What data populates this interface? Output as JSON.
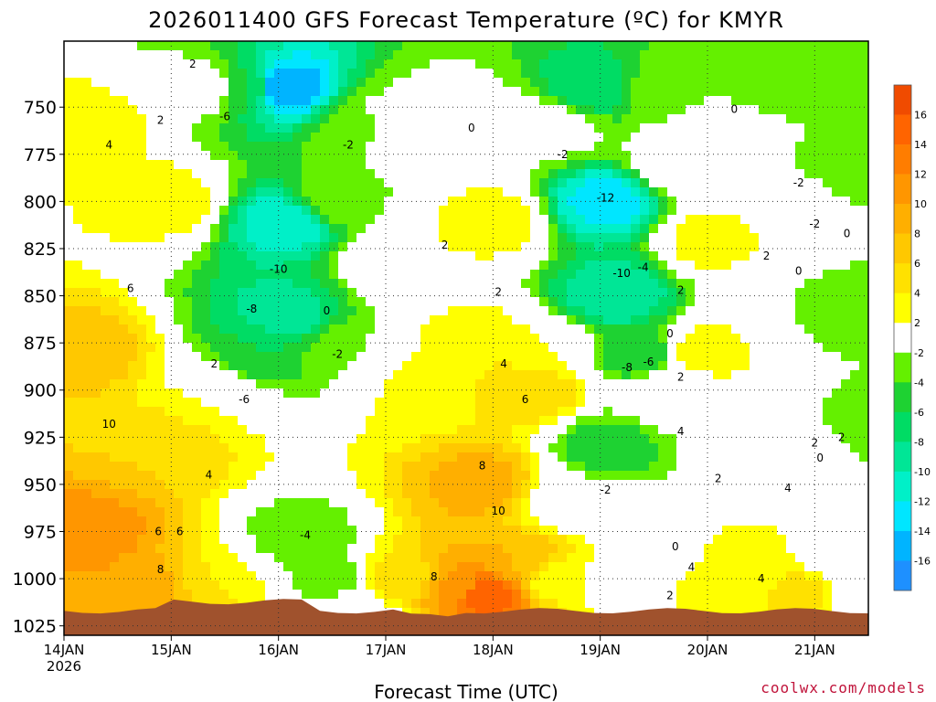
{
  "chart_data": {
    "type": "heatmap",
    "title": "2026011400 GFS Forecast Temperature (ºC) for KMYR",
    "xlabel": "Forecast Time (UTC)",
    "ylabel": "",
    "credit": "coolwx.com/models",
    "y_axis": {
      "range": [
        1030,
        715
      ],
      "ticks": [
        "750",
        "775",
        "800",
        "825",
        "850",
        "875",
        "900",
        "925",
        "950",
        "975",
        "1000",
        "1025"
      ]
    },
    "x_axis": {
      "range_days": [
        0,
        7.5
      ],
      "ticks": [
        {
          "label": "14JAN",
          "sub": "2026",
          "day": 0
        },
        {
          "label": "15JAN",
          "sub": "",
          "day": 1
        },
        {
          "label": "16JAN",
          "sub": "",
          "day": 2
        },
        {
          "label": "17JAN",
          "sub": "",
          "day": 3
        },
        {
          "label": "18JAN",
          "sub": "",
          "day": 4
        },
        {
          "label": "19JAN",
          "sub": "",
          "day": 5
        },
        {
          "label": "20JAN",
          "sub": "",
          "day": 6
        },
        {
          "label": "21JAN",
          "sub": "",
          "day": 7
        }
      ]
    },
    "colorbar": {
      "bins": [
        {
          "lo": -18,
          "hi": -16,
          "color": "#1e90ff"
        },
        {
          "lo": -16,
          "hi": -14,
          "color": "#00b4ff"
        },
        {
          "lo": -14,
          "hi": -12,
          "color": "#00e6ff"
        },
        {
          "lo": -12,
          "hi": -10,
          "color": "#00f0c8"
        },
        {
          "lo": -10,
          "hi": -8,
          "color": "#00e696"
        },
        {
          "lo": -8,
          "hi": -6,
          "color": "#00dc64"
        },
        {
          "lo": -6,
          "hi": -4,
          "color": "#1ed232"
        },
        {
          "lo": -4,
          "hi": -2,
          "color": "#64f000"
        },
        {
          "lo": -2,
          "hi": 2,
          "color": "#ffffff"
        },
        {
          "lo": 2,
          "hi": 4,
          "color": "#ffff00"
        },
        {
          "lo": 4,
          "hi": 6,
          "color": "#ffe100"
        },
        {
          "lo": 6,
          "hi": 8,
          "color": "#ffc800"
        },
        {
          "lo": 8,
          "hi": 10,
          "color": "#ffaf00"
        },
        {
          "lo": 10,
          "hi": 12,
          "color": "#ff9600"
        },
        {
          "lo": 12,
          "hi": 14,
          "color": "#ff7d00"
        },
        {
          "lo": 14,
          "hi": 16,
          "color": "#ff6400"
        },
        {
          "lo": 16,
          "hi": 18,
          "color": "#f04b00"
        }
      ],
      "labels": [
        "16",
        "14",
        "12",
        "10",
        "8",
        "6",
        "4",
        "2",
        "-2",
        "-4",
        "-6",
        "-8",
        "-10",
        "-12",
        "-14",
        "-16"
      ]
    },
    "field_points": [
      {
        "day": 0.25,
        "p": 975,
        "t": 11
      },
      {
        "day": 0.2,
        "p": 880,
        "t": 7
      },
      {
        "day": 0.25,
        "p": 760,
        "t": 3
      },
      {
        "day": 0.7,
        "p": 1005,
        "t": 10
      },
      {
        "day": 0.85,
        "p": 930,
        "t": 6
      },
      {
        "day": 0.95,
        "p": 800,
        "t": 3
      },
      {
        "day": 1.3,
        "p": 1005,
        "t": 6
      },
      {
        "day": 1.35,
        "p": 900,
        "t": 2
      },
      {
        "day": 1.35,
        "p": 740,
        "t": 0
      },
      {
        "day": 1.6,
        "p": 1000,
        "t": 2
      },
      {
        "day": 1.8,
        "p": 880,
        "t": -6
      },
      {
        "day": 1.7,
        "p": 740,
        "t": -6
      },
      {
        "day": 2.05,
        "p": 740,
        "t": -16
      },
      {
        "day": 2.1,
        "p": 810,
        "t": -12
      },
      {
        "day": 2.05,
        "p": 860,
        "t": -9
      },
      {
        "day": 2.2,
        "p": 980,
        "t": -4
      },
      {
        "day": 2.45,
        "p": 1000,
        "t": -3
      },
      {
        "day": 2.5,
        "p": 800,
        "t": -2
      },
      {
        "day": 2.65,
        "p": 880,
        "t": -2
      },
      {
        "day": 2.75,
        "p": 1020,
        "t": 0
      },
      {
        "day": 2.8,
        "p": 760,
        "t": -3
      },
      {
        "day": 3.0,
        "p": 760,
        "t": 0
      },
      {
        "day": 3.1,
        "p": 830,
        "t": 2
      },
      {
        "day": 3.15,
        "p": 1000,
        "t": 5
      },
      {
        "day": 3.4,
        "p": 900,
        "t": 3
      },
      {
        "day": 3.55,
        "p": 760,
        "t": 0
      },
      {
        "day": 3.7,
        "p": 1005,
        "t": 10
      },
      {
        "day": 3.9,
        "p": 1008,
        "t": 16
      },
      {
        "day": 3.9,
        "p": 950,
        "t": 9
      },
      {
        "day": 3.85,
        "p": 880,
        "t": 4
      },
      {
        "day": 4.0,
        "p": 810,
        "t": 3
      },
      {
        "day": 4.2,
        "p": 760,
        "t": 0
      },
      {
        "day": 4.25,
        "p": 990,
        "t": 8
      },
      {
        "day": 4.35,
        "p": 900,
        "t": 6
      },
      {
        "day": 4.6,
        "p": 1000,
        "t": 3
      },
      {
        "day": 4.55,
        "p": 880,
        "t": 2
      },
      {
        "day": 4.7,
        "p": 960,
        "t": 0
      },
      {
        "day": 4.6,
        "p": 760,
        "t": -1
      },
      {
        "day": 4.9,
        "p": 740,
        "t": -8
      },
      {
        "day": 5.05,
        "p": 800,
        "t": -13
      },
      {
        "day": 5.15,
        "p": 850,
        "t": -10
      },
      {
        "day": 5.05,
        "p": 930,
        "t": -5
      },
      {
        "day": 5.3,
        "p": 1000,
        "t": -2
      },
      {
        "day": 5.35,
        "p": 880,
        "t": -6
      },
      {
        "day": 5.6,
        "p": 740,
        "t": -3
      },
      {
        "day": 5.55,
        "p": 1000,
        "t": 0
      },
      {
        "day": 5.7,
        "p": 900,
        "t": 1
      },
      {
        "day": 5.75,
        "p": 780,
        "t": 1
      },
      {
        "day": 5.9,
        "p": 1005,
        "t": 3
      },
      {
        "day": 5.95,
        "p": 880,
        "t": 3
      },
      {
        "day": 6.05,
        "p": 820,
        "t": 3
      },
      {
        "day": 6.15,
        "p": 760,
        "t": 0
      },
      {
        "day": 6.3,
        "p": 1000,
        "t": 3
      },
      {
        "day": 6.3,
        "p": 880,
        "t": 2
      },
      {
        "day": 6.5,
        "p": 740,
        "t": -3
      },
      {
        "day": 6.6,
        "p": 800,
        "t": 1
      },
      {
        "day": 6.7,
        "p": 1005,
        "t": 4
      },
      {
        "day": 6.9,
        "p": 1008,
        "t": 5
      },
      {
        "day": 6.9,
        "p": 930,
        "t": 2
      },
      {
        "day": 6.85,
        "p": 850,
        "t": -2
      },
      {
        "day": 7.1,
        "p": 740,
        "t": -2
      },
      {
        "day": 7.3,
        "p": 780,
        "t": -3
      },
      {
        "day": 7.3,
        "p": 860,
        "t": -3
      },
      {
        "day": 7.25,
        "p": 990,
        "t": 0
      },
      {
        "day": 7.45,
        "p": 1010,
        "t": -2
      },
      {
        "day": 7.45,
        "p": 920,
        "t": -4
      }
    ],
    "contour_labels": [
      {
        "text": "2",
        "day": 1.2,
        "p": 727
      },
      {
        "text": "-6",
        "day": 1.5,
        "p": 755
      },
      {
        "text": "2",
        "day": 0.9,
        "p": 757
      },
      {
        "text": "4",
        "day": 0.42,
        "p": 770
      },
      {
        "text": "-2",
        "day": 2.65,
        "p": 770
      },
      {
        "text": "0",
        "day": 3.8,
        "p": 761
      },
      {
        "text": "-2",
        "day": 4.65,
        "p": 775
      },
      {
        "text": "-12",
        "day": 5.05,
        "p": 798
      },
      {
        "text": "-10",
        "day": 5.2,
        "p": 838
      },
      {
        "text": "-4",
        "day": 5.4,
        "p": 835
      },
      {
        "text": "-8",
        "day": 5.25,
        "p": 888
      },
      {
        "text": "-6",
        "day": 5.45,
        "p": 885
      },
      {
        "text": "2",
        "day": 3.55,
        "p": 823
      },
      {
        "text": "2",
        "day": 4.05,
        "p": 848
      },
      {
        "text": "4",
        "day": 4.1,
        "p": 886
      },
      {
        "text": "6",
        "day": 4.3,
        "p": 905
      },
      {
        "text": "8",
        "day": 3.9,
        "p": 940
      },
      {
        "text": "10",
        "day": 4.05,
        "p": 964
      },
      {
        "text": "8",
        "day": 3.45,
        "p": 999
      },
      {
        "text": "6",
        "day": 0.62,
        "p": 846
      },
      {
        "text": "2",
        "day": 1.4,
        "p": 886
      },
      {
        "text": "10",
        "day": 0.42,
        "p": 918
      },
      {
        "text": "4",
        "day": 1.35,
        "p": 945
      },
      {
        "text": "6",
        "day": 0.88,
        "p": 975
      },
      {
        "text": "6",
        "day": 1.08,
        "p": 975
      },
      {
        "text": "8",
        "day": 0.9,
        "p": 995
      },
      {
        "text": "-10",
        "day": 2.0,
        "p": 836
      },
      {
        "text": "-8",
        "day": 1.75,
        "p": 857
      },
      {
        "text": "-6",
        "day": 1.68,
        "p": 905
      },
      {
        "text": "0",
        "day": 2.45,
        "p": 858
      },
      {
        "text": "-2",
        "day": 2.55,
        "p": 881
      },
      {
        "text": "-4",
        "day": 2.25,
        "p": 977
      },
      {
        "text": "0",
        "day": 6.25,
        "p": 751
      },
      {
        "text": "-2",
        "day": 6.85,
        "p": 790
      },
      {
        "text": "-2",
        "day": 7.0,
        "p": 812
      },
      {
        "text": "0",
        "day": 7.3,
        "p": 817
      },
      {
        "text": "2",
        "day": 6.55,
        "p": 829
      },
      {
        "text": "0",
        "day": 6.85,
        "p": 837
      },
      {
        "text": "2",
        "day": 5.75,
        "p": 847
      },
      {
        "text": "0",
        "day": 5.65,
        "p": 870
      },
      {
        "text": "2",
        "day": 5.75,
        "p": 893
      },
      {
        "text": "4",
        "day": 5.75,
        "p": 922
      },
      {
        "text": "-2",
        "day": 5.05,
        "p": 953
      },
      {
        "text": "0",
        "day": 5.7,
        "p": 983
      },
      {
        "text": "2",
        "day": 6.1,
        "p": 947
      },
      {
        "text": "4",
        "day": 6.75,
        "p": 952
      },
      {
        "text": "2",
        "day": 7.0,
        "p": 928
      },
      {
        "text": "0",
        "day": 7.05,
        "p": 936
      },
      {
        "text": "2",
        "day": 7.25,
        "p": 925
      },
      {
        "text": "4",
        "day": 5.85,
        "p": 994
      },
      {
        "text": "4",
        "day": 6.5,
        "p": 1000
      },
      {
        "text": "2",
        "day": 5.65,
        "p": 1009
      }
    ]
  }
}
